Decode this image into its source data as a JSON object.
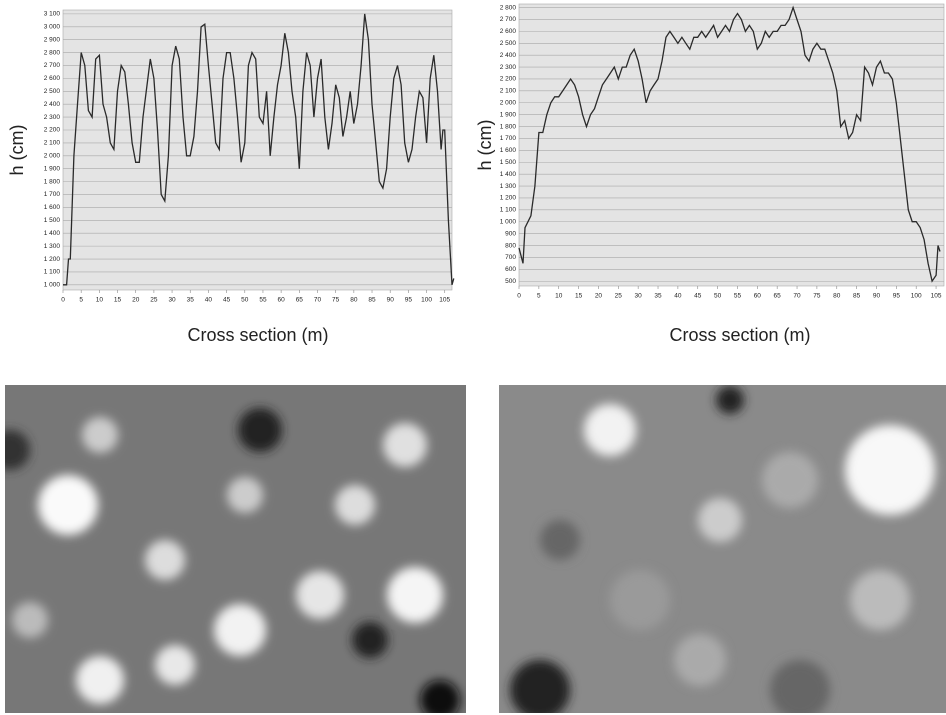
{
  "chart_data": [
    {
      "type": "line",
      "y_label": "h (cm)",
      "x_label": "Cross section (m)",
      "color": "#2a2a2a",
      "grid": true,
      "x": [
        0,
        1,
        1.5,
        2,
        3,
        4,
        5,
        6,
        7,
        8,
        9,
        10,
        11,
        12,
        13,
        14,
        15,
        16,
        17,
        18,
        19,
        20,
        21,
        22,
        24,
        25,
        26,
        27,
        28,
        29,
        30,
        31,
        32,
        33,
        34,
        35,
        36,
        37,
        38,
        39,
        40,
        41,
        42,
        43,
        44,
        45,
        46,
        47,
        48,
        49,
        50,
        51,
        52,
        53,
        54,
        55,
        56,
        57,
        58,
        59,
        60,
        61,
        62,
        63,
        64,
        65,
        66,
        67,
        68,
        69,
        70,
        71,
        72,
        73,
        74,
        75,
        76,
        77,
        78,
        79,
        80,
        81,
        82,
        83,
        84,
        85,
        86,
        87,
        88,
        89,
        90,
        91,
        92,
        93,
        94,
        95,
        96,
        97,
        98,
        99,
        100,
        101,
        102,
        103,
        104,
        104.5,
        105,
        106,
        107,
        107.5
      ],
      "values": [
        1000,
        1000,
        1200,
        1200,
        2000,
        2400,
        2800,
        2700,
        2350,
        2300,
        2750,
        2780,
        2400,
        2300,
        2100,
        2050,
        2500,
        2700,
        2650,
        2400,
        2100,
        1950,
        1950,
        2300,
        2750,
        2600,
        2200,
        1700,
        1650,
        2000,
        2700,
        2850,
        2750,
        2300,
        2000,
        2000,
        2150,
        2500,
        3000,
        3020,
        2700,
        2400,
        2100,
        2050,
        2600,
        2800,
        2800,
        2600,
        2300,
        1950,
        2100,
        2700,
        2800,
        2750,
        2300,
        2250,
        2500,
        2000,
        2300,
        2550,
        2700,
        2950,
        2800,
        2500,
        2300,
        1900,
        2500,
        2800,
        2700,
        2300,
        2600,
        2750,
        2300,
        2050,
        2250,
        2550,
        2450,
        2150,
        2300,
        2500,
        2250,
        2400,
        2700,
        3100,
        2900,
        2400,
        2100,
        1800,
        1750,
        1900,
        2300,
        2600,
        2700,
        2550,
        2100,
        1950,
        2050,
        2300,
        2500,
        2450,
        2100,
        2600,
        2780,
        2500,
        2050,
        2200,
        2200,
        1500,
        1000,
        1050
      ],
      "xlim": [
        0,
        107
      ],
      "ylim": [
        960,
        3130
      ],
      "xticks": [
        0,
        5,
        10,
        15,
        20,
        25,
        30,
        35,
        40,
        45,
        50,
        55,
        60,
        65,
        70,
        75,
        80,
        85,
        90,
        95,
        100,
        105
      ],
      "yticks": [
        {
          "value": 1000,
          "label": "1 000"
        },
        {
          "value": 1100,
          "label": "1 100"
        },
        {
          "value": 1200,
          "label": "1 200"
        },
        {
          "value": 1300,
          "label": "1 300"
        },
        {
          "value": 1400,
          "label": "1 400"
        },
        {
          "value": 1500,
          "label": "1 500"
        },
        {
          "value": 1600,
          "label": "1 600"
        },
        {
          "value": 1700,
          "label": "1 700"
        },
        {
          "value": 1800,
          "label": "1 800"
        },
        {
          "value": 1900,
          "label": "1 900"
        },
        {
          "value": 2000,
          "label": "2 000"
        },
        {
          "value": 2100,
          "label": "2 100"
        },
        {
          "value": 2200,
          "label": "2 200"
        },
        {
          "value": 2300,
          "label": "2 300"
        },
        {
          "value": 2400,
          "label": "2 400"
        },
        {
          "value": 2500,
          "label": "2 500"
        },
        {
          "value": 2600,
          "label": "2 600"
        },
        {
          "value": 2700,
          "label": "2 700"
        },
        {
          "value": 2800,
          "label": "2 800"
        },
        {
          "value": 2900,
          "label": "2 900"
        },
        {
          "value": 3000,
          "label": "3 000"
        },
        {
          "value": 3100,
          "label": "3 100"
        }
      ]
    },
    {
      "type": "line",
      "y_label": "h (cm)",
      "x_label": "Cross section (m)",
      "color": "#2a2a2a",
      "grid": true,
      "x": [
        0,
        1,
        1.5,
        3,
        4,
        5,
        6,
        7,
        8,
        9,
        10,
        11,
        12,
        13,
        14,
        15,
        16,
        17,
        18,
        19,
        20,
        21,
        22,
        23,
        24,
        25,
        26,
        27,
        28,
        29,
        30,
        31,
        32,
        33,
        34,
        35,
        36,
        37,
        38,
        39,
        40,
        41,
        42,
        43,
        44,
        45,
        46,
        47,
        48,
        49,
        50,
        51,
        52,
        53,
        54,
        55,
        56,
        57,
        58,
        59,
        60,
        61,
        62,
        63,
        64,
        65,
        66,
        67,
        68,
        69,
        70,
        71,
        72,
        73,
        74,
        75,
        76,
        77,
        78,
        79,
        80,
        81,
        82,
        83,
        84,
        85,
        86,
        87,
        88,
        89,
        90,
        91,
        92,
        93,
        94,
        95,
        96,
        97,
        98,
        99,
        100,
        101,
        102,
        103,
        104,
        105,
        105.5,
        106
      ],
      "values": [
        780,
        650,
        950,
        1050,
        1300,
        1750,
        1750,
        1900,
        2000,
        2050,
        2050,
        2100,
        2150,
        2200,
        2150,
        2050,
        1900,
        1800,
        1900,
        1950,
        2050,
        2150,
        2200,
        2250,
        2300,
        2200,
        2300,
        2300,
        2400,
        2450,
        2350,
        2200,
        2000,
        2100,
        2150,
        2200,
        2350,
        2550,
        2600,
        2550,
        2500,
        2550,
        2500,
        2450,
        2550,
        2550,
        2600,
        2550,
        2600,
        2650,
        2550,
        2600,
        2650,
        2600,
        2700,
        2750,
        2700,
        2600,
        2650,
        2600,
        2450,
        2500,
        2600,
        2550,
        2600,
        2600,
        2650,
        2650,
        2700,
        2800,
        2700,
        2600,
        2400,
        2350,
        2450,
        2500,
        2450,
        2450,
        2350,
        2250,
        2100,
        1800,
        1850,
        1700,
        1750,
        1900,
        1850,
        2300,
        2250,
        2150,
        2300,
        2350,
        2250,
        2250,
        2200,
        2000,
        1700,
        1400,
        1100,
        1000,
        1000,
        950,
        850,
        650,
        500,
        550,
        800,
        750
      ],
      "xlim": [
        0,
        107
      ],
      "ylim": [
        460,
        2830
      ],
      "xticks": [
        0,
        5,
        10,
        15,
        20,
        25,
        30,
        35,
        40,
        45,
        50,
        55,
        60,
        65,
        70,
        75,
        80,
        85,
        90,
        95,
        100,
        105
      ],
      "yticks": [
        500,
        600,
        700,
        800,
        900,
        {
          "value": 1000,
          "label": "1 000"
        },
        {
          "value": 1100,
          "label": "1 100"
        },
        {
          "value": 1200,
          "label": "1 200"
        },
        {
          "value": 1300,
          "label": "1 300"
        },
        {
          "value": 1400,
          "label": "1 400"
        },
        {
          "value": 1500,
          "label": "1 500"
        },
        {
          "value": 1600,
          "label": "1 600"
        },
        {
          "value": 1700,
          "label": "1 700"
        },
        {
          "value": 1800,
          "label": "1 800"
        },
        {
          "value": 1900,
          "label": "1 900"
        },
        {
          "value": 2000,
          "label": "2 000"
        },
        {
          "value": 2100,
          "label": "2 100"
        },
        {
          "value": 2200,
          "label": "2 200"
        },
        {
          "value": 2300,
          "label": "2 300"
        },
        {
          "value": 2400,
          "label": "2 400"
        },
        {
          "value": 2500,
          "label": "2 500"
        },
        {
          "value": 2600,
          "label": "2 600"
        },
        {
          "value": 2700,
          "label": "2 700"
        },
        {
          "value": 2800,
          "label": "2 800"
        }
      ]
    }
  ]
}
